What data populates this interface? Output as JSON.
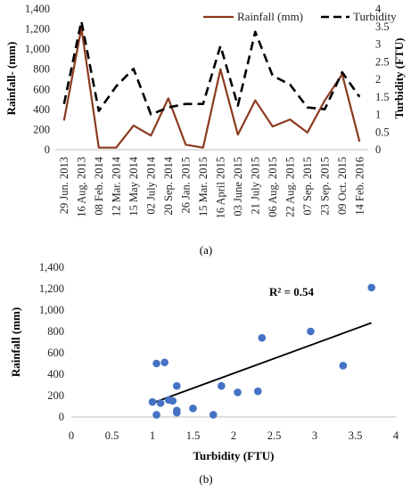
{
  "chart_data": [
    {
      "type": "line",
      "panel_label": "(a)",
      "categories": [
        "29 Jun. 2013",
        "16 Aug. 2013",
        "08 Feb. 2014",
        "12 Mar. 2014",
        "15 May 2014",
        "02 July 2014",
        "20 Sep. 2014",
        "26 Jan. 2015",
        "15 Mar. 2015",
        "16 April 2015",
        "03 June 2015",
        "21 July 2015",
        "06 Aug. 2015",
        "22 Aug. 2015",
        "07 Sep. 2015",
        "23 Sep. 2015",
        "09 Oct. 2015",
        "14 Feb. 2016"
      ],
      "series": [
        {
          "name": "Rainfall (mm)",
          "axis": "left",
          "color": "#8B3A1E",
          "style": "solid",
          "values": [
            290,
            1210,
            20,
            20,
            240,
            140,
            510,
            50,
            20,
            800,
            150,
            490,
            230,
            300,
            170,
            490,
            750,
            80
          ]
        },
        {
          "name": "Turbidity",
          "axis": "right",
          "color": "#000000",
          "style": "dashed",
          "values": [
            1.3,
            3.65,
            1.1,
            1.8,
            2.3,
            1.0,
            1.2,
            1.3,
            1.3,
            2.95,
            1.25,
            3.35,
            2.1,
            1.85,
            1.2,
            1.15,
            2.2,
            1.5
          ]
        }
      ],
      "ylabel": "Rainfall- (mm)",
      "y2label": "Turbidity (FTU)",
      "ylim": [
        0,
        1400
      ],
      "yticks": [
        "0",
        "200",
        "400",
        "600",
        "800",
        "1,000",
        "1,200",
        "1,400"
      ],
      "y2lim": [
        0,
        4
      ],
      "y2ticks": [
        "0",
        "0.5",
        "1",
        "1.5",
        "2",
        "2.5",
        "3",
        "3.5",
        "4"
      ],
      "legend_position": "top-right",
      "grid": false
    },
    {
      "type": "scatter",
      "panel_label": "(b)",
      "x": [
        1.0,
        1.05,
        1.05,
        1.1,
        1.15,
        1.2,
        1.25,
        1.3,
        1.3,
        1.3,
        1.5,
        1.75,
        1.85,
        2.05,
        2.3,
        2.35,
        2.95,
        3.35,
        3.7
      ],
      "y": [
        140,
        20,
        500,
        130,
        510,
        160,
        150,
        40,
        60,
        290,
        80,
        20,
        290,
        230,
        240,
        740,
        800,
        480,
        1210
      ],
      "point_color": "#4472C4",
      "trendline": {
        "x": [
          1.0,
          3.7
        ],
        "y": [
          130,
          880
        ],
        "color": "#000000"
      },
      "annotation": "R² = 0.54",
      "xlabel": "Turbidity (FTU)",
      "ylabel": "Rainfall (mm)",
      "xlim": [
        0,
        4
      ],
      "xticks": [
        "0",
        "0.5",
        "1",
        "1.5",
        "2",
        "2.5",
        "3",
        "3.5",
        "4"
      ],
      "ylim": [
        0,
        1400
      ],
      "yticks": [
        "0",
        "200",
        "400",
        "600",
        "800",
        "1,000",
        "1,200",
        "1,400"
      ],
      "grid": false
    }
  ]
}
